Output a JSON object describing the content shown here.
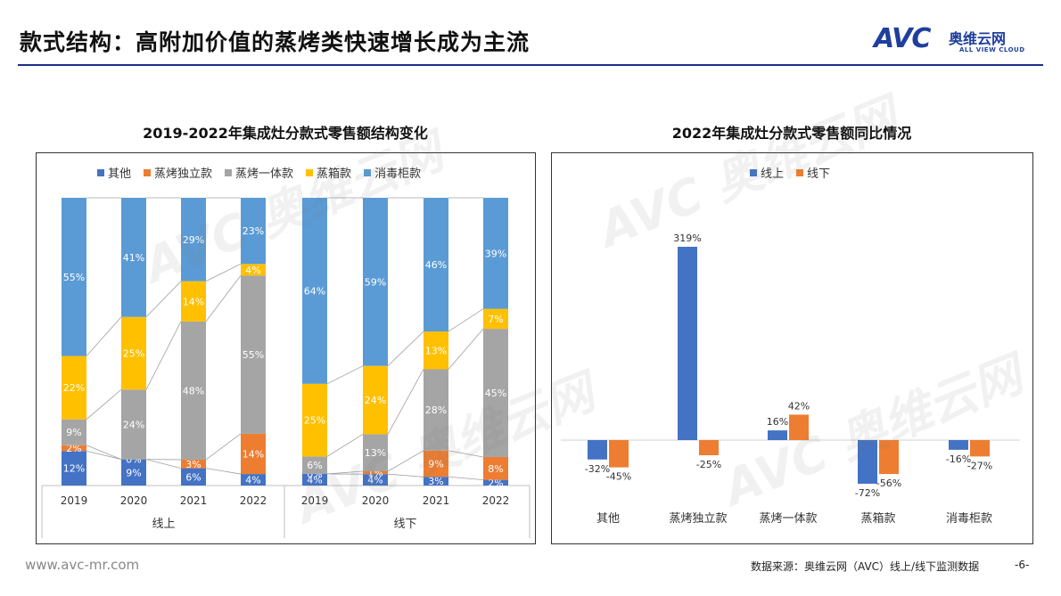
{
  "page": {
    "title": "款式结构：高附加价值的蒸烤类快速增长成为主流",
    "logo": {
      "mark": "AVC",
      "cn": "奥维云网",
      "en": "ALL VIEW CLOUD"
    },
    "watermark": "AVC 奥维云网",
    "footer_url": "www.avc-mr.com",
    "footer_source": "数据来源：奥维云网（AVC）线上/线下监测数据",
    "page_number": "-6-"
  },
  "colors": {
    "blue": "#4472c4",
    "orange": "#ed7d31",
    "gray": "#a5a5a5",
    "yellow": "#ffc000",
    "lightblue": "#5b9bd5",
    "brand": "#1f3f9e"
  },
  "chart_data": [
    {
      "type": "bar",
      "stacked": true,
      "percent": true,
      "title": "2019-2022年集成灶分款式零售额结构变化",
      "groups": [
        "线上",
        "线下"
      ],
      "categories": [
        "2019",
        "2020",
        "2021",
        "2022"
      ],
      "legend_position": "top",
      "series": [
        {
          "name": "其他",
          "color": "#4472c4",
          "online": [
            12,
            9,
            6,
            4
          ],
          "offline": [
            4,
            4,
            3,
            2
          ]
        },
        {
          "name": "蒸烤独立款",
          "color": "#ed7d31",
          "online": [
            2,
            0,
            3,
            14
          ],
          "offline": [
            0,
            1,
            9,
            8
          ]
        },
        {
          "name": "蒸烤一体款",
          "color": "#a5a5a5",
          "online": [
            9,
            24,
            48,
            55
          ],
          "offline": [
            6,
            13,
            28,
            45
          ]
        },
        {
          "name": "蒸箱款",
          "color": "#ffc000",
          "online": [
            22,
            25,
            14,
            4
          ],
          "offline": [
            25,
            24,
            13,
            7
          ]
        },
        {
          "name": "消毒柜款",
          "color": "#5b9bd5",
          "online": [
            55,
            41,
            29,
            23
          ],
          "offline": [
            64,
            59,
            46,
            39
          ]
        }
      ],
      "online_labels": {
        "其他": [
          "12%",
          "9%",
          "6%",
          "4%"
        ],
        "蒸烤独立款": [
          "2%",
          "0%",
          "3%",
          "14%"
        ],
        "蒸烤一体款": [
          "9%",
          "24%",
          "48%",
          "55%"
        ],
        "蒸箱款": [
          "22%",
          "25%",
          "14%",
          "4%"
        ],
        "消毒柜款": [
          "55%",
          "41%",
          "29%",
          "23%"
        ]
      },
      "offline_labels": {
        "其他": [
          "4%",
          "4%",
          "3%",
          "2%"
        ],
        "蒸烤独立款": [
          "0%",
          "1%",
          "9%",
          "8%"
        ],
        "蒸烤一体款": [
          "6%",
          "13%",
          "28%",
          "45%"
        ],
        "蒸箱款": [
          "25%",
          "24%",
          "13%",
          "7%"
        ],
        "消毒柜款": [
          "64%",
          "59%",
          "46%",
          "39%"
        ]
      }
    },
    {
      "type": "bar",
      "title": "2022年集成灶分款式零售额同比情况",
      "categories": [
        "其他",
        "蒸烤独立款",
        "蒸烤一体款",
        "蒸箱款",
        "消毒柜款"
      ],
      "legend_position": "top",
      "series": [
        {
          "name": "线上",
          "color": "#4472c4",
          "values": [
            -32,
            319,
            16,
            -72,
            -16
          ],
          "labels": [
            "-32%",
            "319%",
            "16%",
            "-72%",
            "-16%"
          ]
        },
        {
          "name": "线下",
          "color": "#ed7d31",
          "values": [
            -45,
            -25,
            42,
            -56,
            -27
          ],
          "labels": [
            "-45%",
            "-25%",
            "42%",
            "-56%",
            "-27%"
          ]
        }
      ]
    }
  ]
}
